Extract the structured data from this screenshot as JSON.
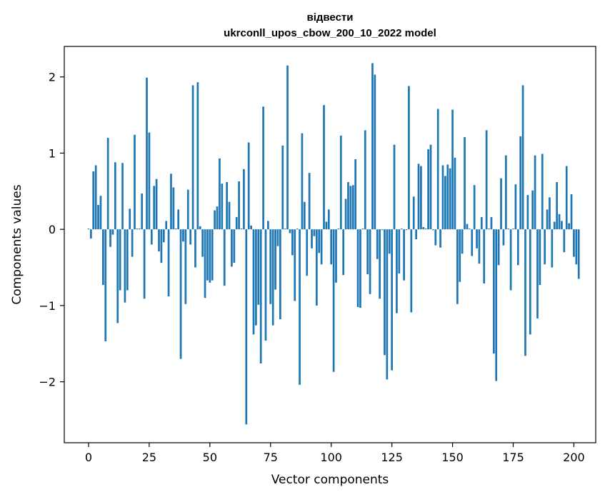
{
  "chart_data": {
    "type": "bar",
    "title_line1": "відвести",
    "title_line2": "ukrconll_upos_cbow_200_10_2022 model",
    "xlabel": "Vector components",
    "ylabel": "Components values",
    "xlim": [
      -10,
      209
    ],
    "ylim": [
      -2.8,
      2.4
    ],
    "x_ticks": [
      0,
      25,
      50,
      75,
      100,
      125,
      150,
      175,
      200
    ],
    "y_ticks": [
      -2,
      -1,
      0,
      1,
      2
    ],
    "y_tick_labels": [
      "−2",
      "−1",
      "0",
      "1",
      "2"
    ],
    "grid": false,
    "bar_color": "#1f77b4",
    "values": [
      0.01,
      -0.12,
      0.76,
      0.84,
      0.32,
      0.44,
      -0.73,
      -1.47,
      1.2,
      -0.23,
      -0.07,
      0.88,
      -1.23,
      -0.8,
      0.87,
      -0.96,
      -0.8,
      0.27,
      -0.36,
      1.24,
      0.01,
      0.01,
      0.47,
      -0.91,
      1.99,
      1.27,
      -0.2,
      0.57,
      0.66,
      -0.29,
      -0.44,
      -0.17,
      0.11,
      -0.88,
      0.73,
      0.55,
      0.01,
      0.26,
      -1.7,
      -0.16,
      -0.98,
      0.52,
      -0.2,
      1.89,
      -0.5,
      1.93,
      0.04,
      -0.36,
      -0.9,
      -0.67,
      -0.7,
      -0.67,
      0.25,
      0.3,
      0.93,
      0.6,
      -0.74,
      0.62,
      0.36,
      -0.49,
      -0.44,
      0.16,
      0.63,
      0.01,
      0.79,
      -2.56,
      1.14,
      0.05,
      -1.38,
      -1.26,
      -0.99,
      -1.76,
      1.61,
      -1.46,
      0.11,
      -0.98,
      -1.26,
      -0.79,
      -0.22,
      -1.18,
      1.1,
      0.01,
      2.15,
      -0.05,
      -0.34,
      -0.94,
      0.01,
      -2.04,
      1.26,
      0.36,
      -0.61,
      0.74,
      -0.25,
      -0.09,
      -1.0,
      -0.31,
      -0.46,
      1.63,
      0.1,
      0.26,
      -0.46,
      -1.87,
      -0.7,
      0.01,
      1.23,
      -0.6,
      0.4,
      0.62,
      0.57,
      0.58,
      0.92,
      -1.02,
      -1.03,
      0.01,
      1.3,
      -0.59,
      -0.85,
      2.18,
      2.03,
      -0.39,
      -0.91,
      -0.01,
      -1.65,
      -1.97,
      -0.32,
      -1.85,
      1.11,
      -1.1,
      -0.58,
      0.01,
      -0.67,
      -0.01,
      1.88,
      -1.09,
      0.43,
      -0.13,
      0.86,
      0.83,
      0.03,
      0.01,
      1.05,
      1.11,
      -0.01,
      -0.21,
      1.58,
      -0.24,
      0.84,
      0.7,
      0.85,
      0.8,
      1.57,
      0.94,
      -0.98,
      -0.69,
      -0.32,
      1.21,
      0.07,
      0.01,
      -0.35,
      0.58,
      -0.25,
      -0.45,
      0.16,
      -0.71,
      1.3,
      0.01,
      0.16,
      -1.63,
      -1.99,
      -0.47,
      0.67,
      -0.21,
      0.97,
      0.01,
      -0.8,
      0.01,
      0.59,
      -0.47,
      1.22,
      1.89,
      -1.66,
      0.45,
      -1.38,
      0.51,
      0.97,
      -1.17,
      -0.73,
      0.99,
      -0.46,
      0.26,
      0.42,
      -0.5,
      0.1,
      0.62,
      0.2,
      0.11,
      -0.3,
      0.83,
      0.08,
      0.46,
      -0.36,
      -0.46,
      -0.65
    ]
  }
}
